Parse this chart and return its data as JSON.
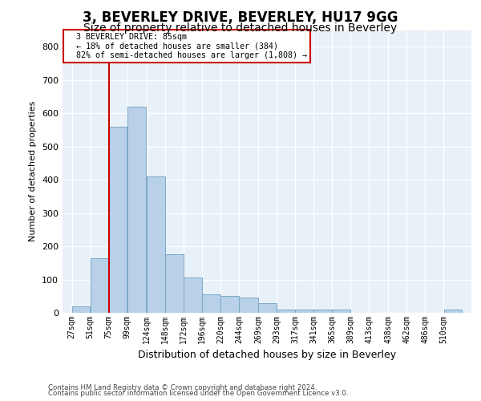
{
  "title1": "3, BEVERLEY DRIVE, BEVERLEY, HU17 9GG",
  "title2": "Size of property relative to detached houses in Beverley",
  "xlabel": "Distribution of detached houses by size in Beverley",
  "ylabel": "Number of detached properties",
  "footnote1": "Contains HM Land Registry data © Crown copyright and database right 2024.",
  "footnote2": "Contains public sector information licensed under the Open Government Licence v3.0.",
  "annotation_line1": "3 BEVERLEY DRIVE: 85sqm",
  "annotation_line2": "← 18% of detached houses are smaller (384)",
  "annotation_line3": "82% of semi-detached houses are larger (1,808) →",
  "bar_color": "#b8d0e8",
  "bar_edge_color": "#7aaac8",
  "vline_color": "#cc0000",
  "vline_x_bin_index": 2,
  "bar_heights": [
    20,
    165,
    560,
    620,
    410,
    175,
    105,
    55,
    50,
    45,
    30,
    10,
    10,
    10,
    10,
    0,
    0,
    0,
    0,
    0,
    10
  ],
  "bin_edges": [
    27,
    51,
    75,
    99,
    124,
    148,
    172,
    196,
    220,
    244,
    269,
    293,
    317,
    341,
    365,
    389,
    413,
    438,
    462,
    486,
    510,
    534
  ],
  "tick_labels": [
    "27sqm",
    "51sqm",
    "75sqm",
    "99sqm",
    "124sqm",
    "148sqm",
    "172sqm",
    "196sqm",
    "220sqm",
    "244sqm",
    "269sqm",
    "293sqm",
    "317sqm",
    "341sqm",
    "365sqm",
    "389sqm",
    "413sqm",
    "438sqm",
    "462sqm",
    "486sqm",
    "510sqm"
  ],
  "ylim": [
    0,
    850
  ],
  "yticks": [
    0,
    100,
    200,
    300,
    400,
    500,
    600,
    700,
    800
  ],
  "background_color": "#e8f0f8",
  "grid_color": "#ffffff",
  "title1_fontsize": 12,
  "title2_fontsize": 10,
  "figsize": [
    6.0,
    5.0
  ],
  "dpi": 100
}
